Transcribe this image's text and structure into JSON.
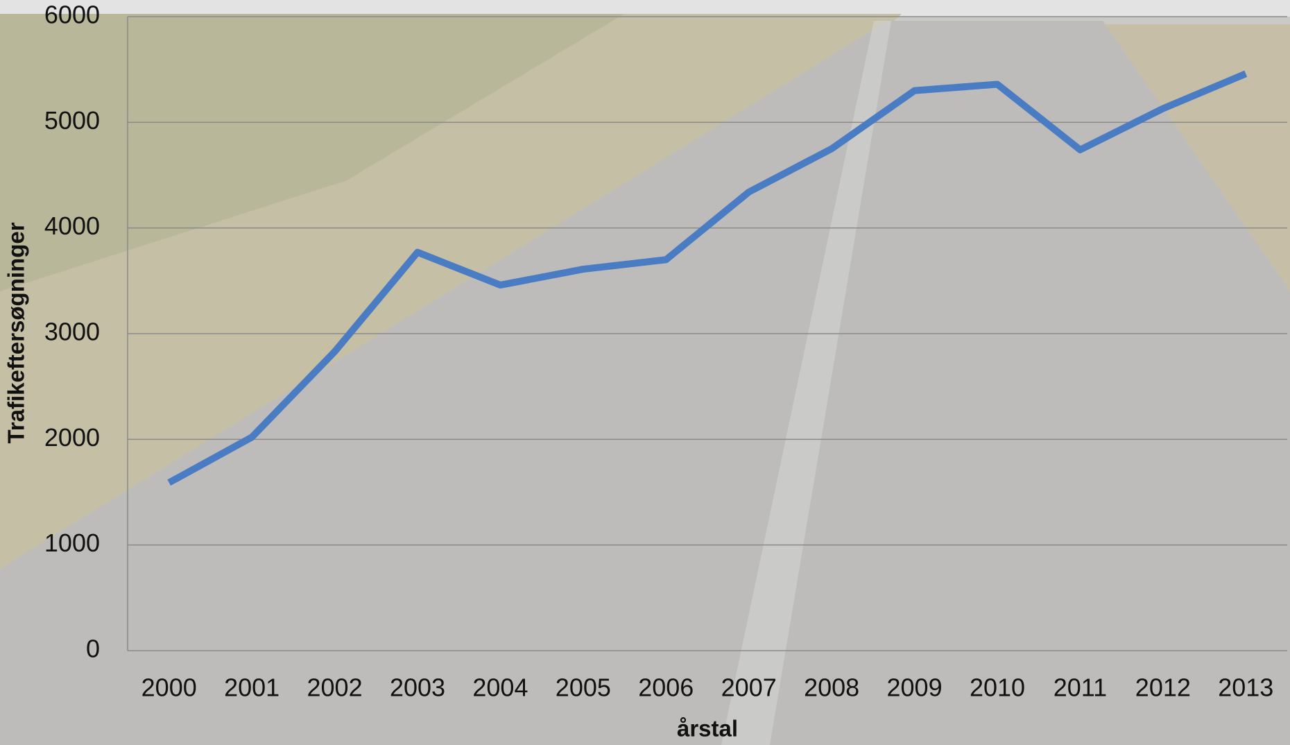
{
  "chart_data": {
    "type": "line",
    "x_label": "årstal",
    "y_label": "Trafikeftersøgninger",
    "categories": [
      "2000",
      "2001",
      "2002",
      "2003",
      "2004",
      "2005",
      "2006",
      "2007",
      "2008",
      "2009",
      "2010",
      "2011",
      "2012",
      "2013"
    ],
    "series": [
      {
        "name": "Trafikeftersøgninger",
        "color": "#4a7cc4",
        "values": [
          1590,
          2020,
          2830,
          3770,
          3460,
          3610,
          3700,
          4340,
          4750,
          5300,
          5360,
          4740,
          5130,
          5460
        ]
      }
    ],
    "ylim": [
      0,
      6000
    ],
    "yticks": [
      0,
      1000,
      2000,
      3000,
      4000,
      5000,
      6000
    ],
    "grid": true
  }
}
